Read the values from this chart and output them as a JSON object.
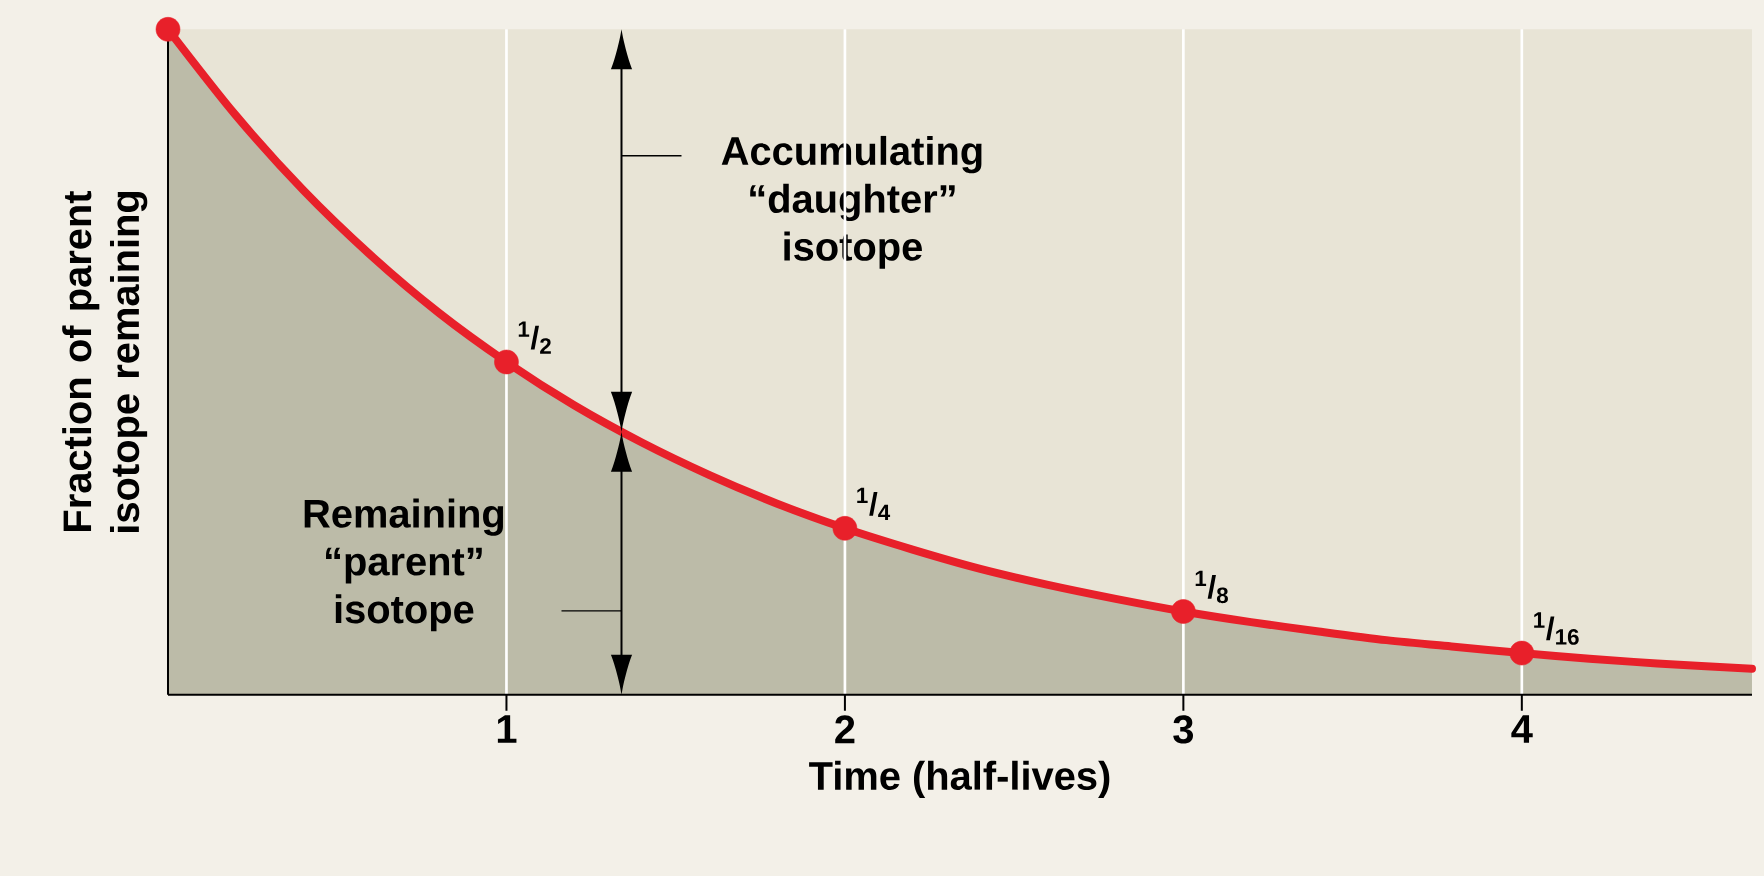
{
  "chart_data": {
    "type": "area",
    "xlabel": "Time (half-lives)",
    "ylabel": "Fraction of parent isotope remaining",
    "xlim": [
      0,
      4.68
    ],
    "xticks": [
      1,
      2,
      3,
      4
    ],
    "ylim": [
      0,
      1
    ],
    "tick_labels": "x",
    "grid": "x",
    "series": [
      {
        "color": "#e8202a",
        "x": [
          0,
          0.2,
          0.4,
          0.6,
          0.8,
          1,
          1.2,
          1.4,
          1.6,
          1.8,
          2,
          2.2,
          2.4,
          2.6,
          2.8,
          3,
          3.2,
          3.4,
          3.6,
          3.8,
          4,
          4.2,
          4.4,
          4.68
        ],
        "values": [
          1,
          0.871,
          0.758,
          0.66,
          0.574,
          0.5,
          0.435,
          0.379,
          0.33,
          0.287,
          0.25,
          0.218,
          0.189,
          0.165,
          0.144,
          0.125,
          0.109,
          0.095,
          0.082,
          0.072,
          0.0625,
          0.054,
          0.047,
          0.039
        ]
      },
      {
        "type": "scatter",
        "color": "#e8202a",
        "marker": "circle",
        "x": [
          0,
          1,
          2,
          3,
          4
        ],
        "values": [
          1,
          0.5,
          0.25,
          0.125,
          0.0625
        ],
        "value_labels": [
          null,
          "$^{1}$/$_{2}$",
          "$^{1}$/$_{4}$",
          "$^{1}$/$_{8}$",
          "$^{1}$/$_{16}$"
        ]
      }
    ],
    "annotations": [
      "Accumulating “daughter” isotope",
      "Remaining “parent” isotope"
    ]
  }
}
